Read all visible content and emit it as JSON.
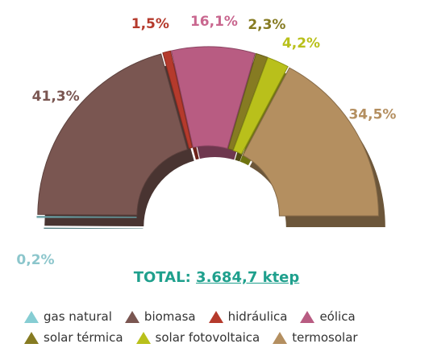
{
  "chart_data": {
    "type": "pie",
    "variant": "3d-half-donut",
    "total_label": "TOTAL:",
    "total_value": "3.684,7 ktep",
    "slices": [
      {
        "name": "gas natural",
        "value": 0.2,
        "label": "0,2%",
        "color": "#86cdd3"
      },
      {
        "name": "biomasa",
        "value": 41.3,
        "label": "41,3%",
        "color": "#7a5651"
      },
      {
        "name": "hidráulica",
        "value": 1.5,
        "label": "1,5%",
        "color": "#b53a2c"
      },
      {
        "name": "eólica",
        "value": 16.1,
        "label": "16,1%",
        "color": "#b85c82"
      },
      {
        "name": "solar térmica",
        "value": 2.3,
        "label": "2,3%",
        "color": "#867b22"
      },
      {
        "name": "solar fotovoltaica",
        "value": 4.2,
        "label": "4,2%",
        "color": "#b9c01b"
      },
      {
        "name": "termosolar",
        "value": 34.5,
        "label": "34,5%",
        "color": "#b48f60"
      }
    ],
    "label_colors": {
      "gas natural": "#8cc6cc",
      "biomasa": "#7a5651",
      "hidráulica": "#b53a2c",
      "eólica": "#c9678f",
      "solar térmica": "#867b22",
      "solar fotovoltaica": "#b9c01b",
      "termosolar": "#b48f60"
    },
    "legend_placement": "bottom"
  }
}
